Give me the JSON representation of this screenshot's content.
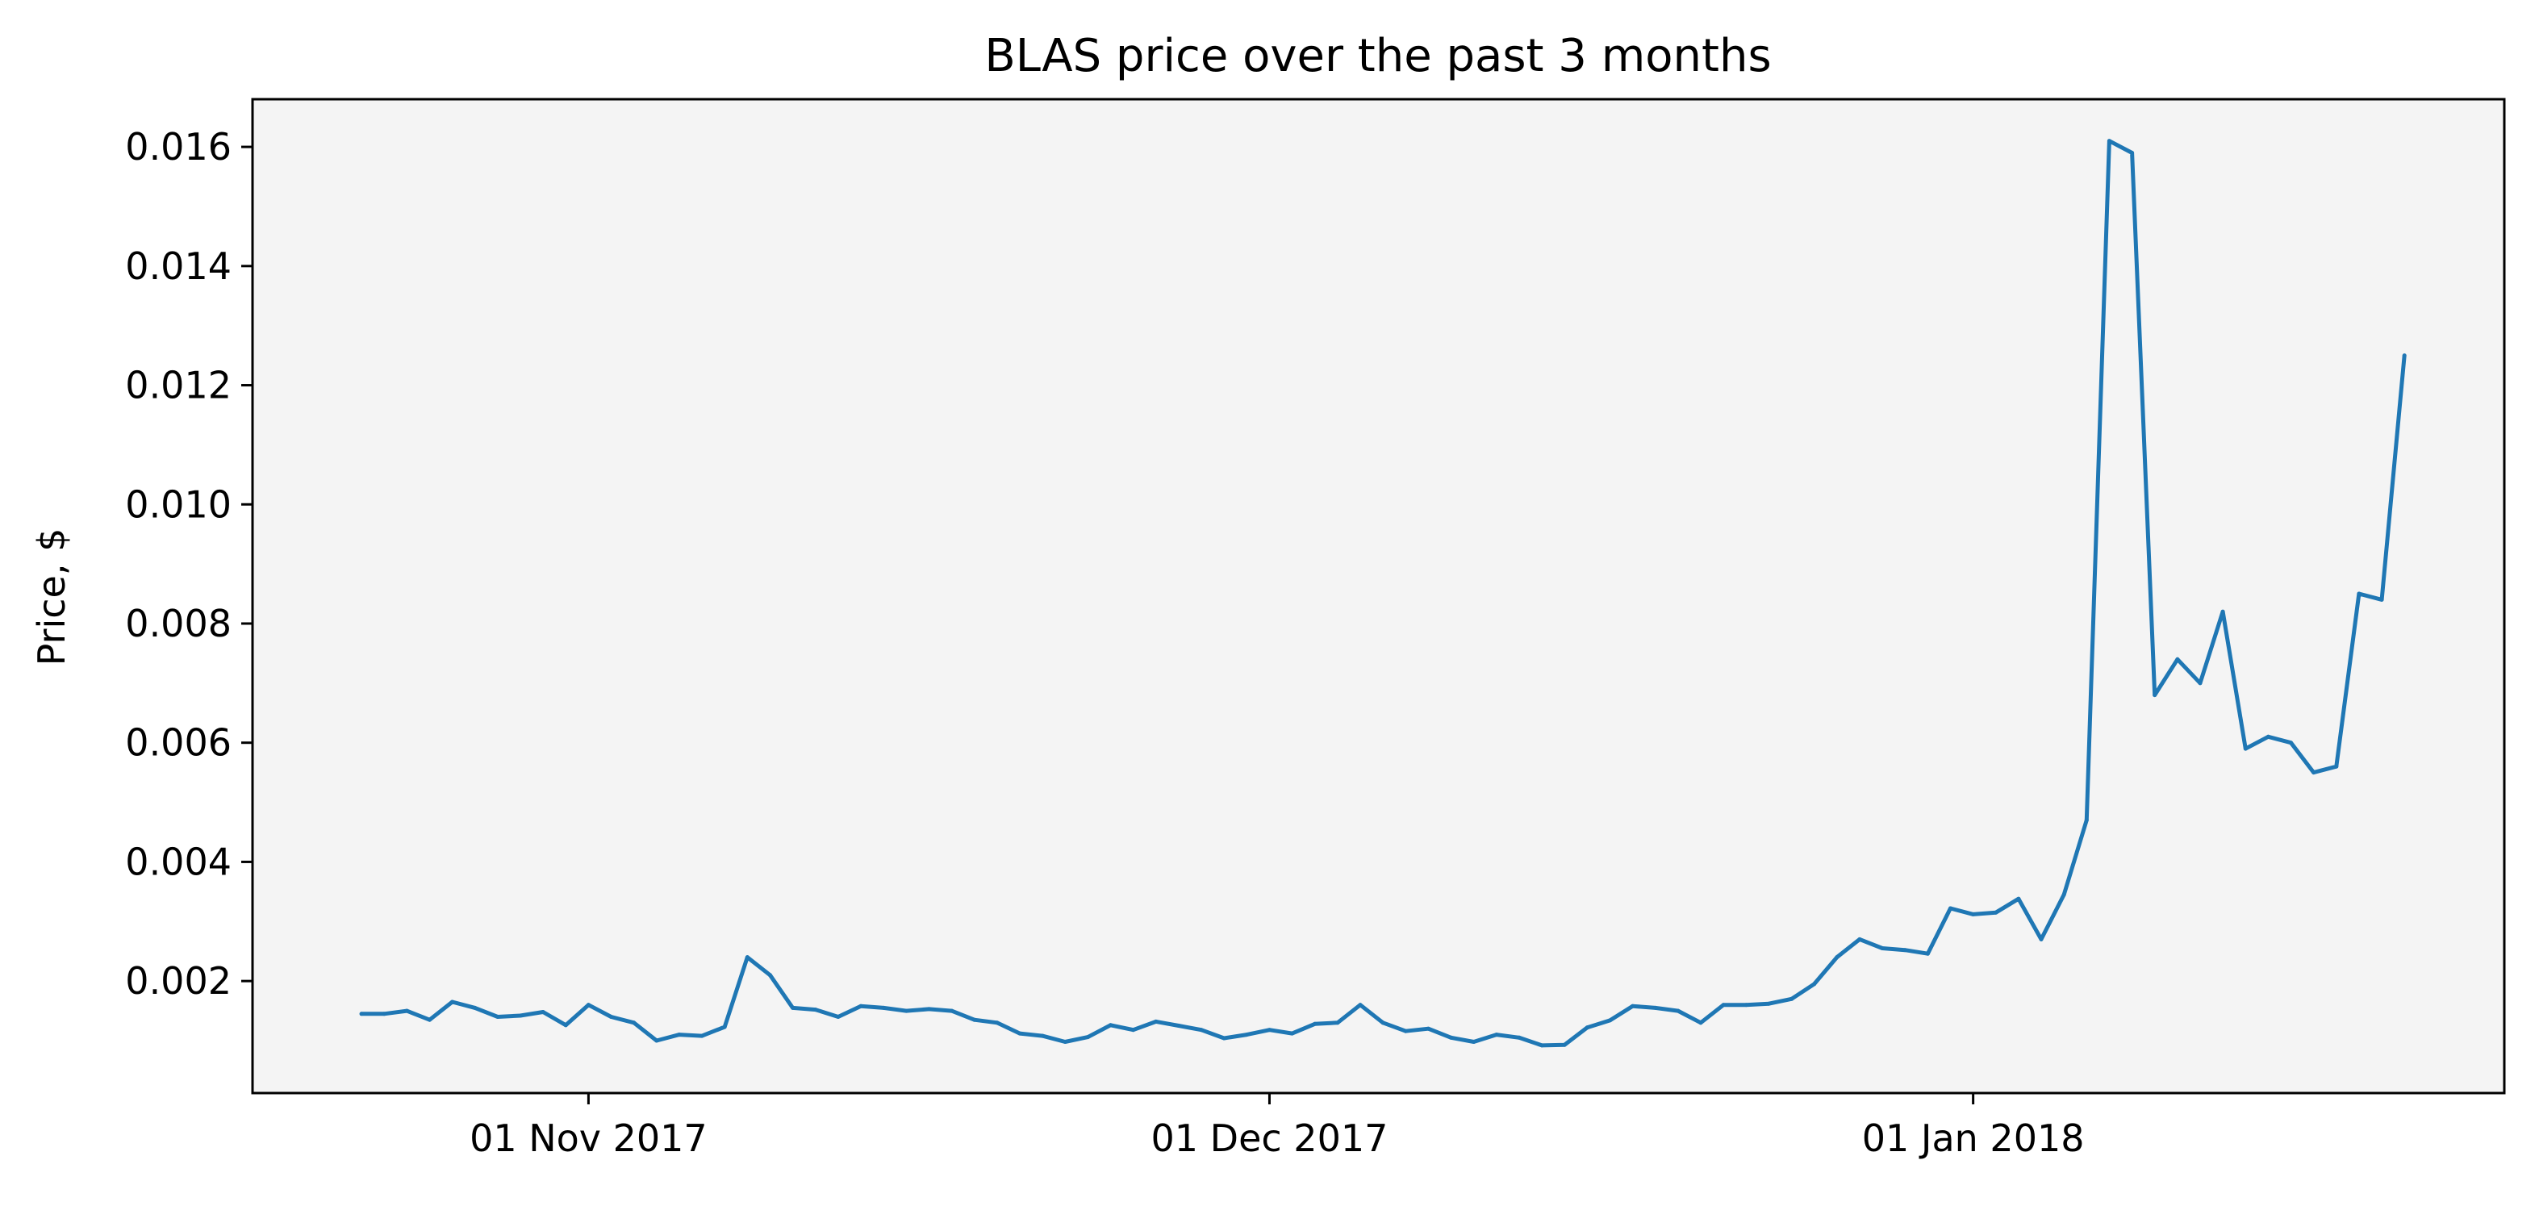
{
  "chart_data": {
    "type": "line",
    "title": "BLAS price over the past 3 months",
    "xlabel": "",
    "ylabel": "Price, $",
    "ylim": [
      0.00012,
      0.0168
    ],
    "xlim_days": [
      -14.8,
      84.4
    ],
    "x_axis_note": "x values are day offsets from 01 Nov 2017",
    "grid": false,
    "colors": {
      "line": "#1f77b4",
      "plot_background": "#f4f4f4",
      "axes": "#000000"
    },
    "x_ticks": [
      {
        "day": 0,
        "label": "01 Nov 2017"
      },
      {
        "day": 30,
        "label": "01 Dec 2017"
      },
      {
        "day": 61,
        "label": "01 Jan 2018"
      }
    ],
    "y_ticks": [
      {
        "value": 0.002,
        "label": "0.002"
      },
      {
        "value": 0.004,
        "label": "0.004"
      },
      {
        "value": 0.006,
        "label": "0.006"
      },
      {
        "value": 0.008,
        "label": "0.008"
      },
      {
        "value": 0.01,
        "label": "0.010"
      },
      {
        "value": 0.012,
        "label": "0.012"
      },
      {
        "value": 0.014,
        "label": "0.014"
      },
      {
        "value": 0.016,
        "label": "0.016"
      }
    ],
    "series": [
      {
        "name": "BLAS",
        "x": [
          -10,
          -9,
          -8,
          -7,
          -6,
          -5,
          -4,
          -3,
          -2,
          -1,
          0,
          1,
          2,
          3,
          4,
          5,
          6,
          7,
          8,
          9,
          10,
          11,
          12,
          13,
          14,
          15,
          16,
          17,
          18,
          19,
          20,
          21,
          22,
          23,
          24,
          25,
          26,
          27,
          28,
          29,
          30,
          31,
          32,
          33,
          34,
          35,
          36,
          37,
          38,
          39,
          40,
          41,
          42,
          43,
          44,
          45,
          46,
          47,
          48,
          49,
          50,
          51,
          52,
          53,
          54,
          55,
          56,
          57,
          58,
          59,
          60,
          61,
          62,
          63,
          64,
          65,
          66,
          67,
          68,
          69,
          70,
          71,
          72,
          73,
          74,
          75,
          76,
          77,
          78,
          79,
          80
        ],
        "values": [
          0.00145,
          0.00145,
          0.0015,
          0.00135,
          0.00165,
          0.00155,
          0.0014,
          0.00142,
          0.00148,
          0.00126,
          0.0016,
          0.0014,
          0.0013,
          0.001,
          0.0011,
          0.00108,
          0.00123,
          0.0024,
          0.0021,
          0.00155,
          0.00152,
          0.0014,
          0.00158,
          0.00155,
          0.0015,
          0.00153,
          0.0015,
          0.00135,
          0.0013,
          0.00112,
          0.00108,
          0.00098,
          0.00106,
          0.00126,
          0.00118,
          0.00132,
          0.00125,
          0.00118,
          0.00104,
          0.0011,
          0.00118,
          0.00112,
          0.00128,
          0.0013,
          0.0016,
          0.0013,
          0.00116,
          0.0012,
          0.00105,
          0.00098,
          0.0011,
          0.00105,
          0.00092,
          0.00093,
          0.00122,
          0.00134,
          0.00158,
          0.00155,
          0.0015,
          0.0013,
          0.0016,
          0.0016,
          0.00162,
          0.0017,
          0.00195,
          0.0024,
          0.0027,
          0.00255,
          0.00252,
          0.00246,
          0.00322,
          0.00312,
          0.00315,
          0.00338,
          0.0027,
          0.00345,
          0.0047,
          0.0161,
          0.0159,
          0.0068,
          0.0074,
          0.007,
          0.0082,
          0.0059,
          0.0061,
          0.006,
          0.0055,
          0.0056,
          0.0085,
          0.0084,
          0.0125
        ]
      }
    ]
  }
}
